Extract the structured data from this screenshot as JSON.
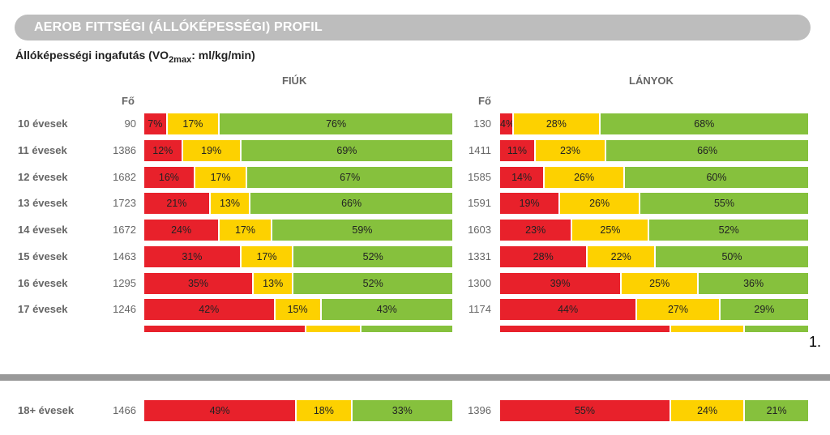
{
  "header": {
    "title": "AEROB FITTSÉGI (ÁLLÓKÉPESSÉGI) PROFIL"
  },
  "subtitle": {
    "main": "Állóképességi ingafutás (VO",
    "sub": "2max",
    "suffix": ": ml/kg/min)"
  },
  "page_number": "1.",
  "colors": {
    "red": "#e8212b",
    "yellow": "#fdd100",
    "green": "#86c13d",
    "header": "#bdbdbd"
  },
  "chart_data": {
    "type": "bar",
    "stacked": true,
    "percent": true,
    "n_header": "Fő",
    "categories": [
      "10 évesek",
      "11 évesek",
      "12 évesek",
      "13 évesek",
      "14 évesek",
      "15 évesek",
      "16 évesek",
      "17 évesek",
      "18+ évesek"
    ],
    "panels": [
      {
        "title": "FIÚK",
        "n": [
          90,
          1386,
          1682,
          1723,
          1672,
          1463,
          1295,
          1246,
          1466
        ],
        "series": [
          {
            "color": "#e8212b",
            "values": [
              7,
              12,
              16,
              21,
              24,
              31,
              35,
              42,
              49
            ]
          },
          {
            "color": "#fdd100",
            "values": [
              17,
              19,
              17,
              13,
              17,
              17,
              13,
              15,
              18
            ]
          },
          {
            "color": "#86c13d",
            "values": [
              76,
              69,
              67,
              66,
              59,
              52,
              52,
              43,
              33
            ]
          }
        ]
      },
      {
        "title": "LÁNYOK",
        "n": [
          130,
          1411,
          1585,
          1591,
          1603,
          1331,
          1300,
          1174,
          1396
        ],
        "series": [
          {
            "color": "#e8212b",
            "values": [
              4,
              11,
              14,
              19,
              23,
              28,
              39,
              44,
              55
            ]
          },
          {
            "color": "#fdd100",
            "values": [
              28,
              23,
              26,
              26,
              25,
              22,
              25,
              27,
              24
            ]
          },
          {
            "color": "#86c13d",
            "values": [
              68,
              66,
              60,
              55,
              52,
              50,
              36,
              29,
              21
            ]
          }
        ]
      }
    ],
    "cutoff_row": {
      "panels": [
        {
          "series": [
            {
              "color": "#e8212b",
              "values": [
                52
              ]
            },
            {
              "color": "#fdd100",
              "values": [
                18
              ]
            },
            {
              "color": "#86c13d",
              "values": [
                30
              ]
            }
          ]
        },
        {
          "series": [
            {
              "color": "#e8212b",
              "values": [
                55
              ]
            },
            {
              "color": "#fdd100",
              "values": [
                24
              ]
            },
            {
              "color": "#86c13d",
              "values": [
                21
              ]
            }
          ]
        }
      ]
    }
  }
}
